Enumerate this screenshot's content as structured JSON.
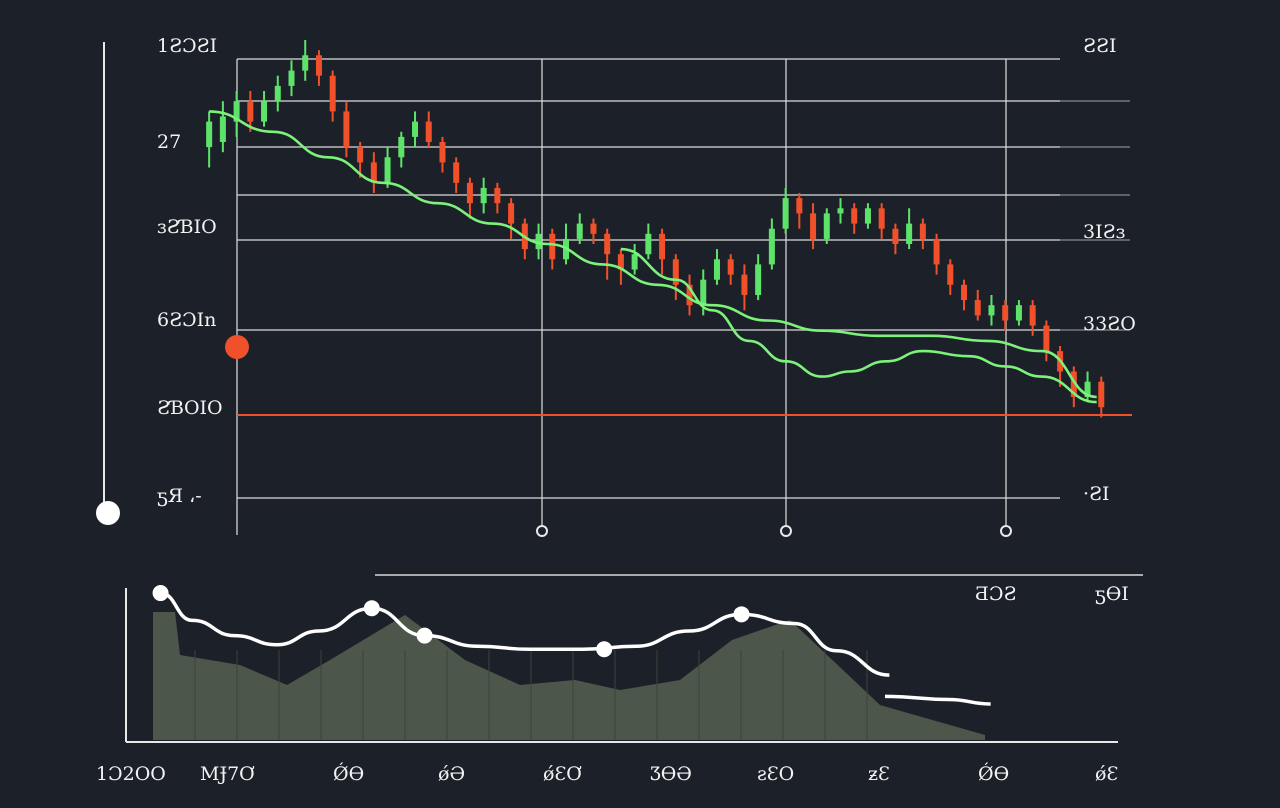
{
  "colors": {
    "background": "#1c2129",
    "grid": "#d8d8d8",
    "bull": "#5ee36a",
    "bear": "#f0502a",
    "ma_line": "#7df27a",
    "indicator_line": "#ffffff",
    "indicator_fill": "#4f5a4d",
    "ref_line": "#f0502a"
  },
  "chart_data": [
    {
      "type": "candlestick",
      "title": "",
      "xlabel": "",
      "ylabel": "",
      "x": [
        0,
        100
      ],
      "ylim": [
        0,
        100
      ],
      "y_tick_labels_left": [
        "1ƧƆƧI",
        "27",
        "ɜƧƁIO",
        "6ƧƆIn",
        "ƧƁOIO",
        "ƽЯ ،-"
      ],
      "y_tick_labels_right": [
        "ƧƧI",
        "3IƧɜ",
        "33ƧO",
        "·ƧI"
      ],
      "reference_line": 53,
      "grid": true,
      "candles": [
        {
          "x": 1,
          "o": 79,
          "c": 84,
          "h": 86,
          "l": 75,
          "d": "up"
        },
        {
          "x": 2.5,
          "o": 80,
          "c": 85,
          "h": 88,
          "l": 78,
          "d": "up"
        },
        {
          "x": 4,
          "o": 84,
          "c": 88,
          "h": 90,
          "l": 81,
          "d": "up"
        },
        {
          "x": 5.5,
          "o": 88,
          "c": 84,
          "h": 90,
          "l": 82,
          "d": "down"
        },
        {
          "x": 7,
          "o": 84,
          "c": 88,
          "h": 90,
          "l": 83,
          "d": "up"
        },
        {
          "x": 8.5,
          "o": 88,
          "c": 91,
          "h": 93,
          "l": 86,
          "d": "up"
        },
        {
          "x": 10,
          "o": 91,
          "c": 94,
          "h": 96,
          "l": 89,
          "d": "up"
        },
        {
          "x": 11.5,
          "o": 94,
          "c": 97,
          "h": 100,
          "l": 92,
          "d": "up"
        },
        {
          "x": 13,
          "o": 97,
          "c": 93,
          "h": 98,
          "l": 91,
          "d": "down"
        },
        {
          "x": 14.5,
          "o": 93,
          "c": 86,
          "h": 94,
          "l": 84,
          "d": "down"
        },
        {
          "x": 16,
          "o": 86,
          "c": 79,
          "h": 88,
          "l": 77,
          "d": "down"
        },
        {
          "x": 17.5,
          "o": 79,
          "c": 76,
          "h": 80,
          "l": 73,
          "d": "down"
        },
        {
          "x": 19,
          "o": 76,
          "c": 72,
          "h": 78,
          "l": 70,
          "d": "down"
        },
        {
          "x": 20.5,
          "o": 72,
          "c": 77,
          "h": 79,
          "l": 71,
          "d": "up"
        },
        {
          "x": 22,
          "o": 77,
          "c": 81,
          "h": 82,
          "l": 75,
          "d": "up"
        },
        {
          "x": 23.5,
          "o": 81,
          "c": 84,
          "h": 86,
          "l": 79,
          "d": "up"
        },
        {
          "x": 25,
          "o": 84,
          "c": 80,
          "h": 86,
          "l": 79,
          "d": "down"
        },
        {
          "x": 26.5,
          "o": 80,
          "c": 76,
          "h": 81,
          "l": 74,
          "d": "down"
        },
        {
          "x": 28,
          "o": 76,
          "c": 72,
          "h": 77,
          "l": 70,
          "d": "down"
        },
        {
          "x": 29.5,
          "o": 72,
          "c": 68,
          "h": 73,
          "l": 65,
          "d": "down"
        },
        {
          "x": 31,
          "o": 68,
          "c": 71,
          "h": 73,
          "l": 66,
          "d": "up"
        },
        {
          "x": 32.5,
          "o": 71,
          "c": 68,
          "h": 72,
          "l": 66,
          "d": "down"
        },
        {
          "x": 34,
          "o": 68,
          "c": 64,
          "h": 69,
          "l": 61,
          "d": "down"
        },
        {
          "x": 35.5,
          "o": 64,
          "c": 59,
          "h": 65,
          "l": 57,
          "d": "down"
        },
        {
          "x": 37,
          "o": 59,
          "c": 62,
          "h": 64,
          "l": 57,
          "d": "up"
        },
        {
          "x": 38.5,
          "o": 62,
          "c": 57,
          "h": 63,
          "l": 55,
          "d": "down"
        },
        {
          "x": 40,
          "o": 57,
          "c": 61,
          "h": 64,
          "l": 56,
          "d": "up"
        },
        {
          "x": 41.5,
          "o": 61,
          "c": 64,
          "h": 66,
          "l": 60,
          "d": "up"
        },
        {
          "x": 43,
          "o": 64,
          "c": 62,
          "h": 65,
          "l": 60,
          "d": "down"
        },
        {
          "x": 44.5,
          "o": 62,
          "c": 58,
          "h": 63,
          "l": 53,
          "d": "down"
        },
        {
          "x": 46,
          "o": 58,
          "c": 55,
          "h": 59,
          "l": 52,
          "d": "down"
        },
        {
          "x": 47.5,
          "o": 55,
          "c": 58,
          "h": 60,
          "l": 54,
          "d": "up"
        },
        {
          "x": 49,
          "o": 58,
          "c": 62,
          "h": 64,
          "l": 57,
          "d": "up"
        },
        {
          "x": 50.5,
          "o": 62,
          "c": 57,
          "h": 63,
          "l": 54,
          "d": "down"
        },
        {
          "x": 52,
          "o": 57,
          "c": 52,
          "h": 58,
          "l": 49,
          "d": "down"
        },
        {
          "x": 53.5,
          "o": 52,
          "c": 48,
          "h": 54,
          "l": 46,
          "d": "down"
        },
        {
          "x": 55,
          "o": 48,
          "c": 53,
          "h": 55,
          "l": 46,
          "d": "up"
        },
        {
          "x": 56.5,
          "o": 53,
          "c": 57,
          "h": 59,
          "l": 52,
          "d": "up"
        },
        {
          "x": 58,
          "o": 57,
          "c": 54,
          "h": 58,
          "l": 52,
          "d": "down"
        },
        {
          "x": 59.5,
          "o": 54,
          "c": 50,
          "h": 56,
          "l": 47,
          "d": "down"
        },
        {
          "x": 61,
          "o": 50,
          "c": 56,
          "h": 58,
          "l": 49,
          "d": "up"
        },
        {
          "x": 62.5,
          "o": 56,
          "c": 63,
          "h": 65,
          "l": 55,
          "d": "up"
        },
        {
          "x": 64,
          "o": 63,
          "c": 69,
          "h": 71,
          "l": 62,
          "d": "up"
        },
        {
          "x": 65.5,
          "o": 69,
          "c": 66,
          "h": 70,
          "l": 63,
          "d": "down"
        },
        {
          "x": 67,
          "o": 66,
          "c": 61,
          "h": 68,
          "l": 59,
          "d": "down"
        },
        {
          "x": 68.5,
          "o": 61,
          "c": 66,
          "h": 67,
          "l": 60,
          "d": "up"
        },
        {
          "x": 70,
          "o": 66,
          "c": 67,
          "h": 69,
          "l": 64,
          "d": "up"
        },
        {
          "x": 71.5,
          "o": 67,
          "c": 64,
          "h": 68,
          "l": 62,
          "d": "down"
        },
        {
          "x": 73,
          "o": 64,
          "c": 67,
          "h": 68,
          "l": 63,
          "d": "up"
        },
        {
          "x": 74.5,
          "o": 67,
          "c": 63,
          "h": 68,
          "l": 61,
          "d": "down"
        },
        {
          "x": 76,
          "o": 63,
          "c": 60,
          "h": 64,
          "l": 58,
          "d": "down"
        },
        {
          "x": 77.5,
          "o": 60,
          "c": 64,
          "h": 67,
          "l": 59,
          "d": "up"
        },
        {
          "x": 79,
          "o": 64,
          "c": 61,
          "h": 65,
          "l": 59,
          "d": "down"
        },
        {
          "x": 80.5,
          "o": 61,
          "c": 56,
          "h": 62,
          "l": 54,
          "d": "down"
        },
        {
          "x": 82,
          "o": 56,
          "c": 52,
          "h": 57,
          "l": 50,
          "d": "down"
        },
        {
          "x": 83.5,
          "o": 52,
          "c": 49,
          "h": 53,
          "l": 47,
          "d": "down"
        },
        {
          "x": 85,
          "o": 49,
          "c": 46,
          "h": 51,
          "l": 45,
          "d": "down"
        },
        {
          "x": 86.5,
          "o": 46,
          "c": 48,
          "h": 50,
          "l": 44,
          "d": "up"
        },
        {
          "x": 88,
          "o": 48,
          "c": 45,
          "h": 49,
          "l": 43,
          "d": "down"
        },
        {
          "x": 89.5,
          "o": 45,
          "c": 48,
          "h": 49,
          "l": 44,
          "d": "up"
        },
        {
          "x": 91,
          "o": 48,
          "c": 44,
          "h": 49,
          "l": 42,
          "d": "down"
        },
        {
          "x": 92.5,
          "o": 44,
          "c": 39,
          "h": 45,
          "l": 37,
          "d": "down"
        },
        {
          "x": 94,
          "o": 39,
          "c": 35,
          "h": 40,
          "l": 32,
          "d": "down"
        },
        {
          "x": 95.5,
          "o": 35,
          "c": 30,
          "h": 36,
          "l": 28,
          "d": "down"
        },
        {
          "x": 97,
          "o": 30,
          "c": 33,
          "h": 35,
          "l": 29,
          "d": "up"
        },
        {
          "x": 98.5,
          "o": 33,
          "c": 28,
          "h": 34,
          "l": 26,
          "d": "down"
        }
      ],
      "series": [
        {
          "type": "line",
          "values": [
            [
              1,
              86
            ],
            [
              8,
              82
            ],
            [
              14,
              77
            ],
            [
              20,
              72
            ],
            [
              26,
              68
            ],
            [
              32,
              64
            ],
            [
              38,
              60
            ],
            [
              44,
              56
            ],
            [
              50,
              52
            ],
            [
              56,
              48
            ],
            [
              62,
              45
            ],
            [
              68,
              43
            ],
            [
              74,
              42
            ],
            [
              80,
              42
            ],
            [
              86,
              41
            ],
            [
              92,
              39
            ],
            [
              98,
              30
            ]
          ]
        },
        {
          "type": "line",
          "values": [
            [
              46,
              59
            ],
            [
              52,
              53
            ],
            [
              56,
              47
            ],
            [
              60,
              41
            ],
            [
              64,
              37
            ],
            [
              68,
              34
            ],
            [
              71,
              35
            ],
            [
              75,
              37
            ],
            [
              79,
              39
            ],
            [
              84,
              38
            ],
            [
              88,
              36
            ],
            [
              92,
              34
            ],
            [
              98,
              29
            ]
          ]
        }
      ],
      "markers_left": [
        {
          "y": 71,
          "color": "#f0502a"
        },
        {
          "y": 31,
          "color": "#ffffff"
        }
      ],
      "markers_bottom": [
        {
          "x": 39
        },
        {
          "x": 65
        },
        {
          "x": 88
        }
      ]
    },
    {
      "type": "area",
      "title": "",
      "xlabel": "",
      "ylabel": "",
      "categories": [
        "1Ɔ2OO",
        "MɈ7Ơ",
        "ǾƟ",
        "ǿƏ",
        "ǿƐƠ",
        "ƷƟƏ",
        "ƨƐO",
        "ƶƐ",
        "ǾƟ",
        "ǿƐ"
      ],
      "values": [
        97,
        85,
        70,
        86,
        72,
        70,
        86,
        60,
        40,
        30
      ],
      "line_points": [
        [
          1,
          98
        ],
        [
          4,
          80
        ],
        [
          8,
          70
        ],
        [
          12,
          64
        ],
        [
          16,
          73
        ],
        [
          21,
          88
        ],
        [
          26,
          70
        ],
        [
          31,
          63
        ],
        [
          36,
          61
        ],
        [
          41,
          61
        ],
        [
          46,
          63
        ],
        [
          51,
          73
        ],
        [
          56,
          84
        ],
        [
          61,
          78
        ],
        [
          65,
          60
        ],
        [
          70,
          44
        ]
      ],
      "line_tail": [
        [
          72,
          30
        ],
        [
          78,
          28
        ],
        [
          82,
          25
        ]
      ],
      "point_markers": [
        [
          1,
          98
        ],
        [
          21,
          88
        ],
        [
          26,
          70
        ],
        [
          43,
          61
        ],
        [
          56,
          84
        ]
      ],
      "ylim": [
        0,
        100
      ],
      "grid": false
    }
  ]
}
